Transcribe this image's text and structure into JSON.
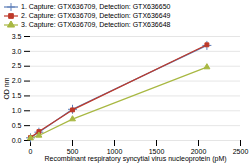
{
  "chart_data": {
    "type": "line",
    "xlabel": "Recombinant respiratory syncytial virus nucleoprotein (pM)",
    "ylabel": "OD nm",
    "x": [
      0,
      100,
      500,
      2100
    ],
    "series": [
      {
        "name": "1. Capture: GTX636709, Detection: GTX636650",
        "color": "#5B7DB8",
        "marker": "plus",
        "values": [
          0.09,
          0.28,
          1.05,
          3.2
        ]
      },
      {
        "name": "2. Capture: GTX636709, Detection: GTX636649",
        "color": "#BE3A2A",
        "marker": "square",
        "values": [
          0.1,
          0.3,
          1.03,
          3.22
        ]
      },
      {
        "name": "3. Capture: GTX636709, Detection: GTX636648",
        "color": "#A8B842",
        "marker": "triangle",
        "values": [
          0.08,
          0.17,
          0.72,
          2.47
        ]
      }
    ],
    "xlim": [
      0,
      2500
    ],
    "ylim": [
      0,
      3.5
    ],
    "xticks": [
      0,
      500,
      1000,
      1500,
      2000,
      2500
    ],
    "yticks": [
      {
        "value": 0,
        "label": "0.0"
      },
      0.5,
      {
        "value": 1.0,
        "label": "1.0"
      },
      1.5,
      {
        "value": 2.0,
        "label": "2.0"
      },
      2.5,
      {
        "value": 3.0,
        "label": "3.0"
      },
      3.5
    ],
    "grid": true,
    "legend": "upper left"
  }
}
